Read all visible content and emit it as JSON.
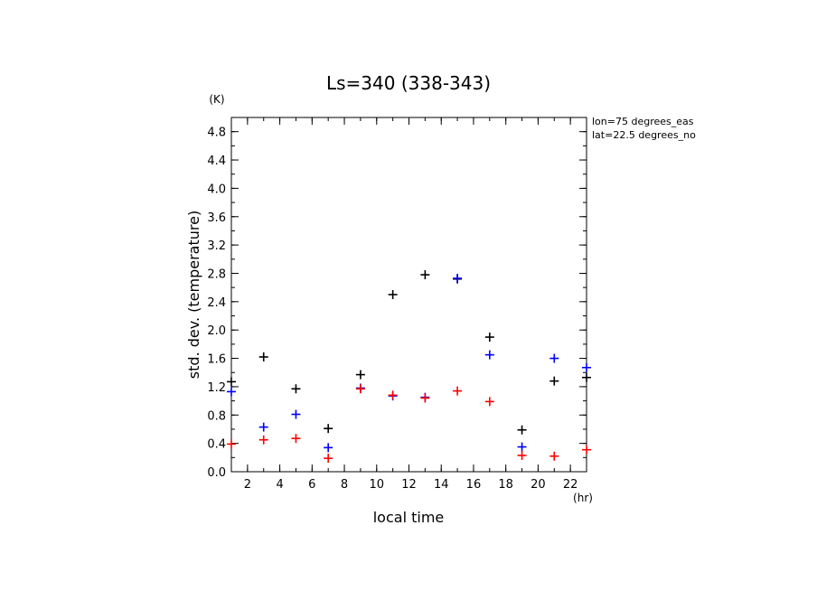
{
  "chart_data": {
    "type": "scatter",
    "title": "Ls=340 (338-343)",
    "xlabel": "local time",
    "ylabel": "std. dev. (temperature)",
    "x_unit": "(hr)",
    "y_unit": "(K)",
    "xlim": [
      1,
      23
    ],
    "ylim": [
      0.0,
      5.0
    ],
    "x_ticks": [
      2,
      4,
      6,
      8,
      10,
      12,
      14,
      16,
      18,
      20,
      22
    ],
    "y_ticks": [
      0.0,
      0.4,
      0.8,
      1.2,
      1.6,
      2.0,
      2.4,
      2.8,
      3.2,
      3.6,
      4.0,
      4.4,
      4.8
    ],
    "grid": false,
    "annotations": [
      "lon=75 degrees_eas",
      "lat=22.5 degrees_no"
    ],
    "series": [
      {
        "color": "#000000",
        "points": [
          [
            1,
            1.27
          ],
          [
            3,
            1.62
          ],
          [
            5,
            1.17
          ],
          [
            7,
            0.61
          ],
          [
            9,
            1.37
          ],
          [
            11,
            2.5
          ],
          [
            13,
            2.78
          ],
          [
            15,
            2.72
          ],
          [
            17,
            1.9
          ],
          [
            19,
            0.59
          ],
          [
            21,
            1.28
          ],
          [
            23,
            1.33
          ]
        ]
      },
      {
        "color": "#0000ff",
        "points": [
          [
            1,
            1.13
          ],
          [
            3,
            0.63
          ],
          [
            5,
            0.81
          ],
          [
            7,
            0.34
          ],
          [
            9,
            1.18
          ],
          [
            11,
            1.07
          ],
          [
            13,
            1.05
          ],
          [
            15,
            2.73
          ],
          [
            17,
            1.65
          ],
          [
            19,
            0.35
          ],
          [
            21,
            1.6
          ],
          [
            23,
            1.47
          ]
        ]
      },
      {
        "color": "#ff0000",
        "points": [
          [
            1,
            0.39
          ],
          [
            3,
            0.45
          ],
          [
            5,
            0.47
          ],
          [
            7,
            0.19
          ],
          [
            9,
            1.17
          ],
          [
            11,
            1.08
          ],
          [
            13,
            1.04
          ],
          [
            15,
            1.14
          ],
          [
            17,
            0.99
          ],
          [
            19,
            0.23
          ],
          [
            21,
            0.22
          ],
          [
            23,
            0.31
          ]
        ]
      }
    ]
  }
}
